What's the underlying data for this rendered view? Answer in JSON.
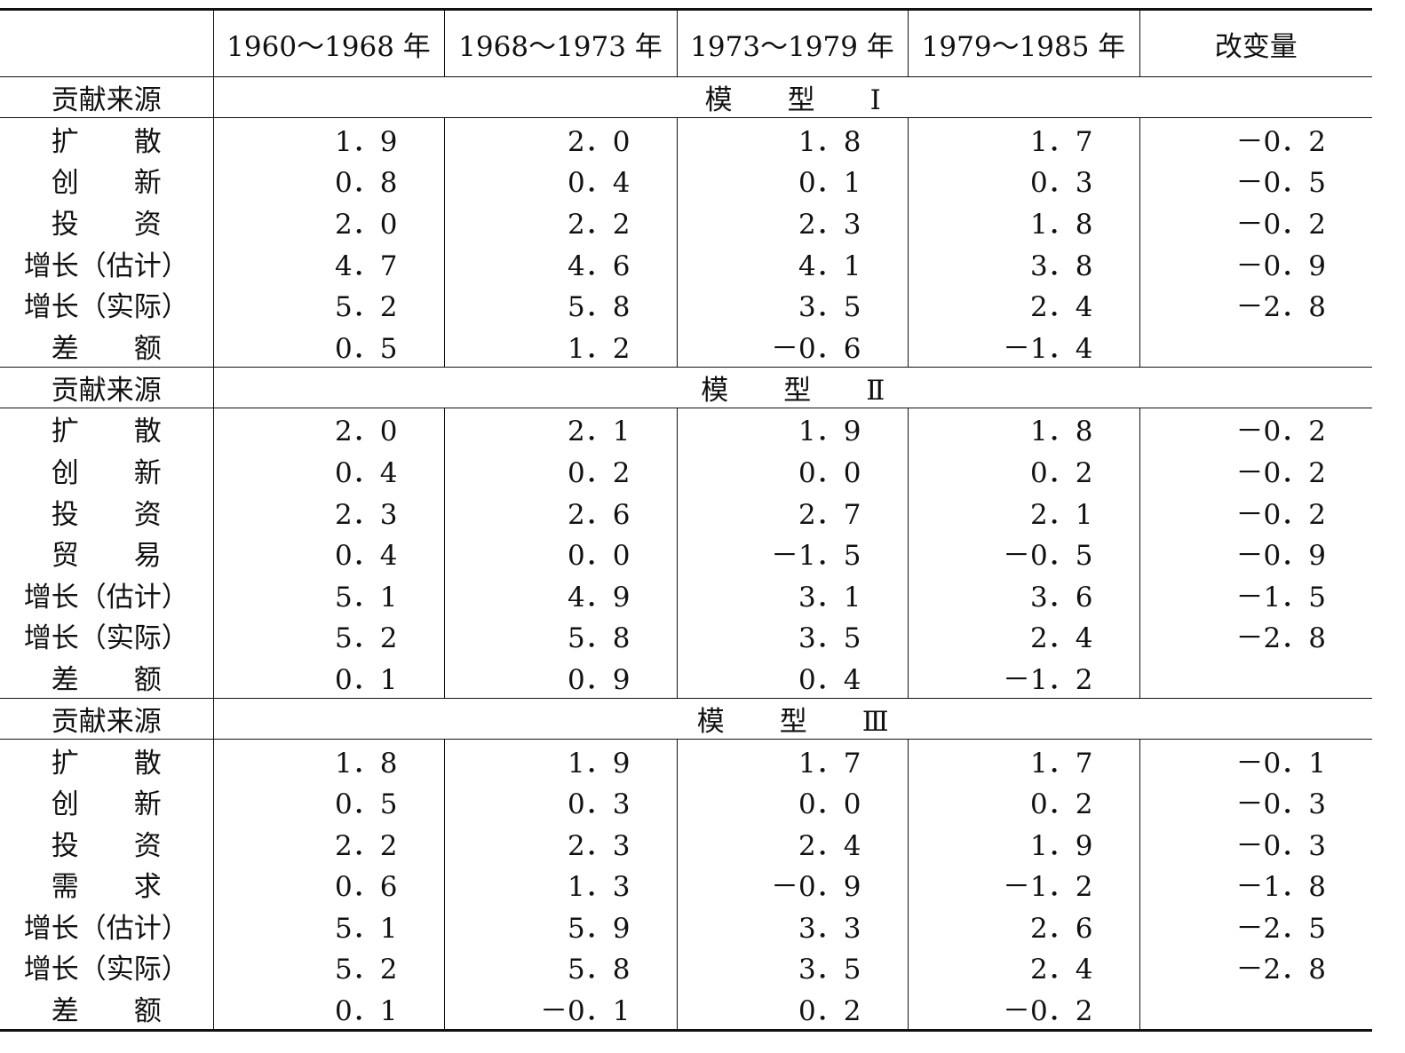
{
  "table": {
    "columns": [
      "1960～1968 年",
      "1968～1973 年",
      "1973～1979 年",
      "1979～1985 年",
      "改变量"
    ],
    "sections": [
      {
        "label": "贡献来源",
        "model": "模　　型　　Ⅰ",
        "rows": [
          {
            "label": "扩　　散",
            "values": [
              "1．9",
              "2．0",
              "1．8",
              "1．7",
              "－0．2"
            ]
          },
          {
            "label": "创　　新",
            "values": [
              "0．8",
              "0．4",
              "0．1",
              "0．3",
              "－0．5"
            ]
          },
          {
            "label": "投　　资",
            "values": [
              "2．0",
              "2．2",
              "2．3",
              "1．8",
              "－0．2"
            ]
          },
          {
            "label": "增长（估计）",
            "values": [
              "4．7",
              "4．6",
              "4．1",
              "3．8",
              "－0．9"
            ]
          },
          {
            "label": "增长（实际）",
            "values": [
              "5．2",
              "5．8",
              "3．5",
              "2．4",
              "－2．8"
            ]
          },
          {
            "label": "差　　额",
            "values": [
              "0．5",
              "1．2",
              "－0．6",
              "－1．4"
            ]
          }
        ]
      },
      {
        "label": "贡献来源",
        "model": "模　　型　　Ⅱ",
        "rows": [
          {
            "label": "扩　　散",
            "values": [
              "2．0",
              "2．1",
              "1．9",
              "1．8",
              "－0．2"
            ]
          },
          {
            "label": "创　　新",
            "values": [
              "0．4",
              "0．2",
              "0．0",
              "0．2",
              "－0．2"
            ]
          },
          {
            "label": "投　　资",
            "values": [
              "2．3",
              "2．6",
              "2．7",
              "2．1",
              "－0．2"
            ]
          },
          {
            "label": "贸　　易",
            "values": [
              "0．4",
              "0．0",
              "－1．5",
              "－0．5",
              "－0．9"
            ]
          },
          {
            "label": "增长（估计）",
            "values": [
              "5．1",
              "4．9",
              "3．1",
              "3．6",
              "－1．5"
            ]
          },
          {
            "label": "增长（实际）",
            "values": [
              "5．2",
              "5．8",
              "3．5",
              "2．4",
              "－2．8"
            ]
          },
          {
            "label": "差　　额",
            "values": [
              "0．1",
              "0．9",
              "0．4",
              "－1．2"
            ]
          }
        ]
      },
      {
        "label": "贡献来源",
        "model": "模　　型　　Ⅲ",
        "rows": [
          {
            "label": "扩　　散",
            "values": [
              "1．8",
              "1．9",
              "1．7",
              "1．7",
              "－0．1"
            ]
          },
          {
            "label": "创　　新",
            "values": [
              "0．5",
              "0．3",
              "0．0",
              "0．2",
              "－0．3"
            ]
          },
          {
            "label": "投　　资",
            "values": [
              "2．2",
              "2．3",
              "2．4",
              "1．9",
              "－0．3"
            ]
          },
          {
            "label": "需　　求",
            "values": [
              "0．6",
              "1．3",
              "－0．9",
              "－1．2",
              "－1．8"
            ]
          },
          {
            "label": "增长（估计）",
            "values": [
              "5．1",
              "5．9",
              "3．3",
              "2．6",
              "－2．5"
            ]
          },
          {
            "label": "增长（实际）",
            "values": [
              "5．2",
              "5．8",
              "3．5",
              "2．4",
              "－2．8"
            ]
          },
          {
            "label": "差　　额",
            "values": [
              "0．1",
              "－0．1",
              "0．2",
              "－0．2"
            ]
          }
        ]
      }
    ]
  }
}
